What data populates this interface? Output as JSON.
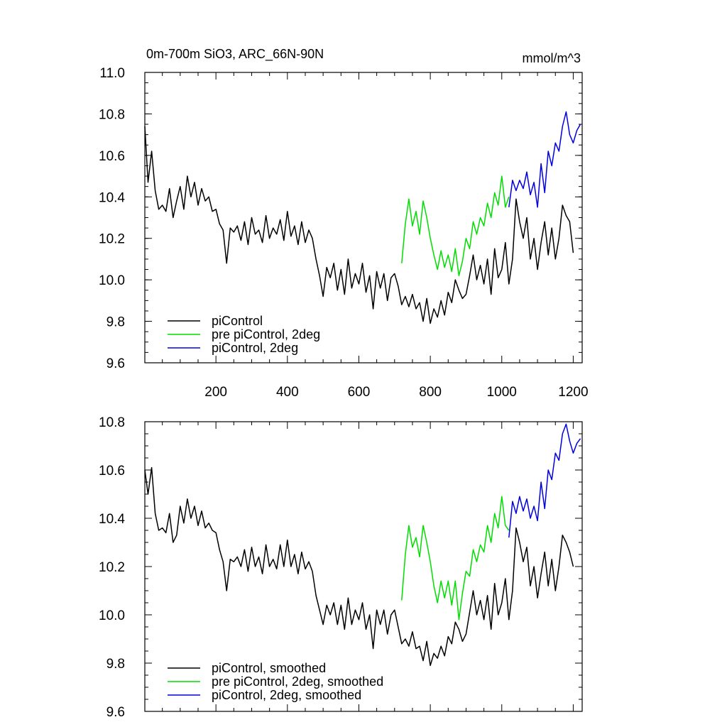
{
  "chart_data": [
    {
      "type": "line",
      "title": "0m-700m SiO3, ARC_66N-90N",
      "units_label": "mmol/m^3",
      "xlabel": "",
      "ylabel": "",
      "xlim": [
        1,
        1225
      ],
      "ylim": [
        9.6,
        11.0
      ],
      "y_ticks": [
        "9.6",
        "9.8",
        "10.0",
        "10.2",
        "10.4",
        "10.6",
        "10.8",
        "11.0"
      ],
      "y_tick_values": [
        9.6,
        9.8,
        10.0,
        10.2,
        10.4,
        10.6,
        10.8,
        11.0
      ],
      "x_ticks": [
        "200",
        "400",
        "600",
        "800",
        "1000",
        "1200"
      ],
      "x_tick_values": [
        200,
        400,
        600,
        800,
        1000,
        1200
      ],
      "x_tick_labels_shown": true,
      "grid": false,
      "legend_position": "bottom-left",
      "series": [
        {
          "name": "piControl",
          "color": "#000000",
          "x": [
            1,
            10,
            20,
            30,
            40,
            50,
            60,
            70,
            80,
            90,
            100,
            110,
            120,
            130,
            140,
            150,
            160,
            170,
            180,
            190,
            200,
            210,
            220,
            230,
            240,
            250,
            260,
            270,
            280,
            290,
            300,
            310,
            320,
            330,
            340,
            350,
            360,
            370,
            380,
            390,
            400,
            410,
            420,
            430,
            440,
            450,
            460,
            470,
            480,
            490,
            500,
            510,
            520,
            530,
            540,
            550,
            560,
            570,
            580,
            590,
            600,
            610,
            620,
            630,
            640,
            650,
            660,
            670,
            680,
            690,
            700,
            710,
            720,
            730,
            740,
            750,
            760,
            770,
            780,
            790,
            800,
            810,
            820,
            830,
            840,
            850,
            860,
            870,
            880,
            890,
            900,
            910,
            920,
            930,
            940,
            950,
            960,
            970,
            980,
            990,
            1000,
            1010,
            1020,
            1030,
            1040,
            1050,
            1060,
            1070,
            1080,
            1090,
            1100,
            1110,
            1120,
            1130,
            1140,
            1150,
            1160,
            1170,
            1180,
            1190,
            1200
          ],
          "y": [
            10.74,
            10.47,
            10.62,
            10.43,
            10.34,
            10.36,
            10.33,
            10.44,
            10.3,
            10.38,
            10.45,
            10.34,
            10.5,
            10.4,
            10.47,
            10.36,
            10.44,
            10.38,
            10.4,
            10.33,
            10.34,
            10.27,
            10.24,
            10.08,
            10.25,
            10.23,
            10.26,
            10.19,
            10.28,
            10.17,
            10.3,
            10.22,
            10.24,
            10.18,
            10.31,
            10.2,
            10.25,
            10.22,
            10.29,
            10.19,
            10.33,
            10.21,
            10.26,
            10.17,
            10.28,
            10.18,
            10.24,
            10.2,
            10.1,
            10.02,
            9.92,
            10.06,
            10.01,
            10.08,
            9.95,
            10.05,
            9.93,
            10.1,
            9.96,
            10.03,
            9.98,
            10.08,
            9.94,
            10.02,
            9.86,
            10.04,
            9.96,
            10.03,
            9.9,
            10.01,
            10.03,
            9.97,
            9.88,
            9.92,
            9.87,
            9.93,
            9.86,
            9.89,
            9.8,
            9.91,
            9.79,
            9.86,
            9.82,
            9.9,
            9.83,
            9.94,
            9.89,
            10.0,
            9.95,
            9.91,
            9.93,
            10.02,
            10.12,
            10.0,
            10.07,
            9.98,
            10.1,
            9.93,
            10.15,
            10.01,
            10.05,
            10.18,
            9.98,
            10.1,
            10.39,
            10.28,
            10.2,
            10.3,
            10.1,
            10.2,
            10.05,
            10.18,
            10.28,
            10.12,
            10.25,
            10.1,
            10.2,
            10.36,
            10.31,
            10.28,
            10.13
          ]
        },
        {
          "name": "pre piControl, 2deg",
          "color": "#00dd00",
          "x": [
            720,
            730,
            740,
            750,
            760,
            770,
            780,
            790,
            800,
            810,
            820,
            830,
            840,
            850,
            860,
            870,
            880,
            890,
            900,
            910,
            920,
            930,
            940,
            950,
            960,
            970,
            980,
            990,
            1000,
            1010,
            1020
          ],
          "y": [
            10.08,
            10.27,
            10.39,
            10.26,
            10.33,
            10.22,
            10.38,
            10.3,
            10.2,
            10.12,
            10.05,
            10.14,
            10.06,
            10.12,
            10.04,
            10.15,
            10.02,
            10.09,
            10.2,
            10.15,
            10.28,
            10.22,
            10.3,
            10.26,
            10.37,
            10.3,
            10.42,
            10.36,
            10.5,
            10.35,
            10.4
          ]
        },
        {
          "name": "piControl, 2deg",
          "color": "#0000dd",
          "x": [
            1020,
            1030,
            1040,
            1050,
            1060,
            1070,
            1080,
            1090,
            1100,
            1110,
            1120,
            1130,
            1140,
            1150,
            1160,
            1170,
            1180,
            1190,
            1200,
            1210,
            1220
          ],
          "y": [
            10.35,
            10.48,
            10.43,
            10.48,
            10.44,
            10.52,
            10.41,
            10.47,
            10.35,
            10.56,
            10.42,
            10.62,
            10.55,
            10.66,
            10.62,
            10.74,
            10.81,
            10.7,
            10.66,
            10.72,
            10.75
          ]
        }
      ]
    },
    {
      "type": "line",
      "title": "",
      "xlabel": "",
      "ylabel": "",
      "xlim": [
        1,
        1225
      ],
      "ylim": [
        9.6,
        10.8
      ],
      "y_ticks": [
        "9.6",
        "9.8",
        "10.0",
        "10.2",
        "10.4",
        "10.6",
        "10.8"
      ],
      "y_tick_values": [
        9.6,
        9.8,
        10.0,
        10.2,
        10.4,
        10.6,
        10.8
      ],
      "x_tick_values": [
        200,
        400,
        600,
        800,
        1000,
        1200
      ],
      "x_tick_labels_shown": false,
      "grid": false,
      "legend_position": "bottom-left",
      "series": [
        {
          "name": "piControl, smoothed",
          "color": "#000000",
          "x": [
            1,
            10,
            20,
            30,
            40,
            50,
            60,
            70,
            80,
            90,
            100,
            110,
            120,
            130,
            140,
            150,
            160,
            170,
            180,
            190,
            200,
            210,
            220,
            230,
            240,
            250,
            260,
            270,
            280,
            290,
            300,
            310,
            320,
            330,
            340,
            350,
            360,
            370,
            380,
            390,
            400,
            410,
            420,
            430,
            440,
            450,
            460,
            470,
            480,
            490,
            500,
            510,
            520,
            530,
            540,
            550,
            560,
            570,
            580,
            590,
            600,
            610,
            620,
            630,
            640,
            650,
            660,
            670,
            680,
            690,
            700,
            710,
            720,
            730,
            740,
            750,
            760,
            770,
            780,
            790,
            800,
            810,
            820,
            830,
            840,
            850,
            860,
            870,
            880,
            890,
            900,
            910,
            920,
            930,
            940,
            950,
            960,
            970,
            980,
            990,
            1000,
            1010,
            1020,
            1030,
            1040,
            1050,
            1060,
            1070,
            1080,
            1090,
            1100,
            1110,
            1120,
            1130,
            1140,
            1150,
            1160,
            1170,
            1180,
            1190,
            1200
          ],
          "y": [
            10.6,
            10.5,
            10.61,
            10.42,
            10.35,
            10.36,
            10.34,
            10.42,
            10.3,
            10.33,
            10.45,
            10.38,
            10.48,
            10.4,
            10.45,
            10.37,
            10.43,
            10.36,
            10.38,
            10.35,
            10.34,
            10.27,
            10.22,
            10.1,
            10.23,
            10.22,
            10.24,
            10.2,
            10.27,
            10.18,
            10.28,
            10.2,
            10.24,
            10.17,
            10.29,
            10.2,
            10.23,
            10.19,
            10.29,
            10.2,
            10.31,
            10.2,
            10.25,
            10.17,
            10.26,
            10.19,
            10.22,
            10.18,
            10.08,
            10.02,
            9.96,
            10.04,
            10.0,
            10.05,
            9.96,
            10.04,
            9.94,
            10.07,
            9.96,
            10.02,
            9.98,
            10.05,
            9.94,
            10.0,
            9.86,
            10.02,
            9.96,
            10.02,
            9.92,
            10.0,
            10.02,
            9.95,
            9.88,
            9.9,
            9.87,
            9.93,
            9.86,
            9.87,
            9.81,
            9.89,
            9.79,
            9.84,
            9.82,
            9.87,
            9.83,
            9.91,
            9.88,
            9.97,
            9.94,
            9.89,
            9.92,
            10.01,
            10.1,
            10.0,
            10.06,
            9.98,
            10.08,
            9.94,
            10.13,
            10.0,
            10.05,
            10.15,
            9.98,
            10.1,
            10.36,
            10.3,
            10.22,
            10.28,
            10.12,
            10.2,
            10.07,
            10.17,
            10.26,
            10.12,
            10.23,
            10.1,
            10.2,
            10.33,
            10.3,
            10.26,
            10.2
          ]
        },
        {
          "name": "pre piControl, 2deg, smoothed",
          "color": "#00dd00",
          "x": [
            720,
            730,
            740,
            750,
            760,
            770,
            780,
            790,
            800,
            810,
            820,
            830,
            840,
            850,
            860,
            870,
            880,
            890,
            900,
            910,
            920,
            930,
            940,
            950,
            960,
            970,
            980,
            990,
            1000,
            1010,
            1020
          ],
          "y": [
            10.06,
            10.25,
            10.37,
            10.28,
            10.32,
            10.24,
            10.37,
            10.3,
            10.22,
            10.12,
            10.05,
            10.14,
            10.07,
            10.14,
            10.04,
            10.14,
            9.98,
            10.09,
            10.18,
            10.16,
            10.27,
            10.22,
            10.29,
            10.26,
            10.37,
            10.3,
            10.42,
            10.36,
            10.49,
            10.37,
            10.35
          ]
        },
        {
          "name": "piControl, 2deg, smoothed",
          "color": "#0000dd",
          "x": [
            1020,
            1030,
            1040,
            1050,
            1060,
            1070,
            1080,
            1090,
            1100,
            1110,
            1120,
            1130,
            1140,
            1150,
            1160,
            1170,
            1180,
            1190,
            1200,
            1210,
            1220
          ],
          "y": [
            10.32,
            10.47,
            10.42,
            10.49,
            10.43,
            10.48,
            10.4,
            10.45,
            10.39,
            10.55,
            10.44,
            10.6,
            10.56,
            10.67,
            10.64,
            10.75,
            10.79,
            10.72,
            10.67,
            10.71,
            10.73
          ]
        }
      ]
    }
  ]
}
